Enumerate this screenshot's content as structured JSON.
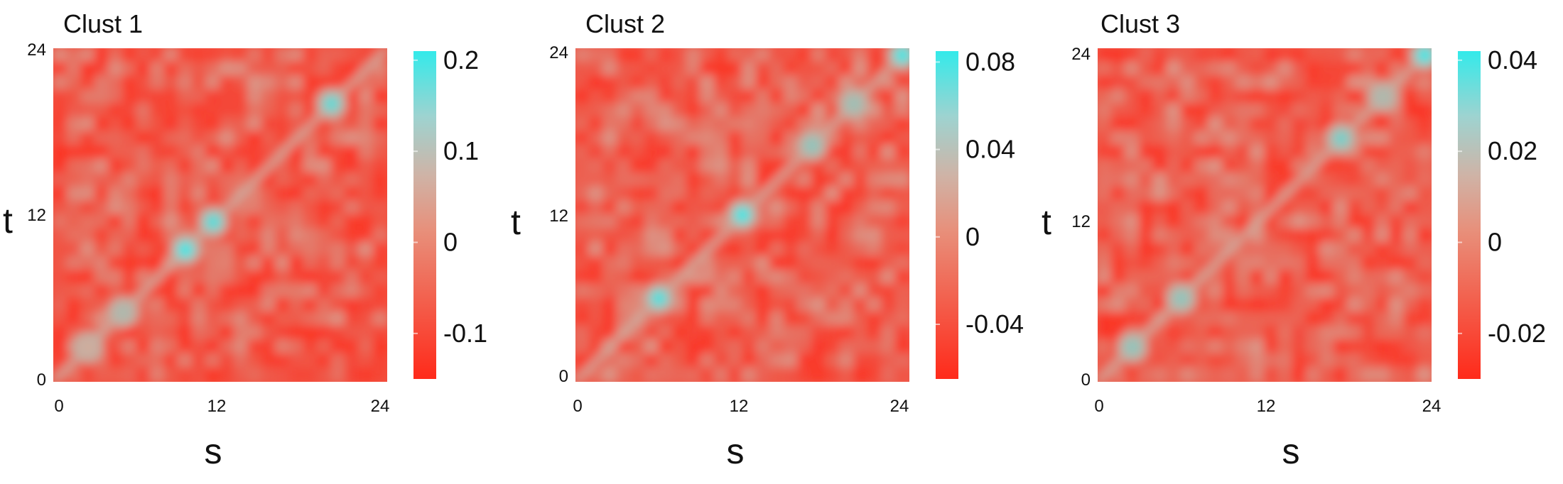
{
  "chart_data": [
    {
      "type": "heatmap",
      "title": "Clust 1",
      "xlabel": "s",
      "ylabel": "t",
      "x_ticks": [
        "0",
        "12",
        "24"
      ],
      "y_ticks": [
        "0",
        "12",
        "24"
      ],
      "xlim": [
        0,
        24
      ],
      "ylim": [
        0,
        24
      ],
      "colorbar": {
        "range": [
          -0.15,
          0.21
        ],
        "ticks": [
          -0.1,
          0,
          0.1,
          0.2
        ],
        "tick_labels": [
          "-0.1",
          "0",
          "0.1",
          "0.2"
        ]
      },
      "diagonal_peaks": [
        {
          "s": 9.5,
          "t": 9.5,
          "value": 0.2
        },
        {
          "s": 11.5,
          "t": 11.5,
          "value": 0.18
        },
        {
          "s": 20,
          "t": 20,
          "value": 0.17
        },
        {
          "s": 5,
          "t": 5,
          "value": 0.1
        },
        {
          "s": 2.5,
          "t": 2.5,
          "value": 0.07
        }
      ],
      "background_value": -0.08
    },
    {
      "type": "heatmap",
      "title": "Clust 2",
      "xlabel": "s",
      "ylabel": "t",
      "x_ticks": [
        "0",
        "12",
        "24"
      ],
      "y_ticks": [
        "0",
        "12",
        "24"
      ],
      "xlim": [
        0,
        24
      ],
      "ylim": [
        0,
        24
      ],
      "colorbar": {
        "range": [
          -0.065,
          0.085
        ],
        "ticks": [
          -0.04,
          0,
          0.04,
          0.08
        ],
        "tick_labels": [
          "-0.04",
          "0",
          "0.04",
          "0.08"
        ]
      },
      "diagonal_peaks": [
        {
          "s": 12,
          "t": 12,
          "value": 0.08
        },
        {
          "s": 6,
          "t": 6,
          "value": 0.075
        },
        {
          "s": 23.5,
          "t": 23.5,
          "value": 0.08
        },
        {
          "s": 17,
          "t": 17,
          "value": 0.05
        },
        {
          "s": 20,
          "t": 20,
          "value": 0.045
        }
      ],
      "background_value": -0.03
    },
    {
      "type": "heatmap",
      "title": "Clust 3",
      "xlabel": "s",
      "ylabel": "t",
      "x_ticks": [
        "0",
        "12",
        "24"
      ],
      "y_ticks": [
        "0",
        "12",
        "24"
      ],
      "xlim": [
        0,
        24
      ],
      "ylim": [
        0,
        24
      ],
      "colorbar": {
        "range": [
          -0.03,
          0.042
        ],
        "ticks": [
          -0.02,
          0,
          0.02,
          0.04
        ],
        "tick_labels": [
          "-0.02",
          "0",
          "0.02",
          "0.04"
        ]
      },
      "diagonal_peaks": [
        {
          "s": 17.5,
          "t": 17.5,
          "value": 0.03
        },
        {
          "s": 23.5,
          "t": 23.5,
          "value": 0.04
        },
        {
          "s": 6,
          "t": 6,
          "value": 0.025
        },
        {
          "s": 2.5,
          "t": 2.5,
          "value": 0.025
        },
        {
          "s": 20.5,
          "t": 20.5,
          "value": 0.02
        }
      ],
      "background_value": -0.012
    }
  ],
  "colormap": {
    "low": "#ff2a1a",
    "mid": "#d4a99a",
    "high": "#33eaea"
  }
}
